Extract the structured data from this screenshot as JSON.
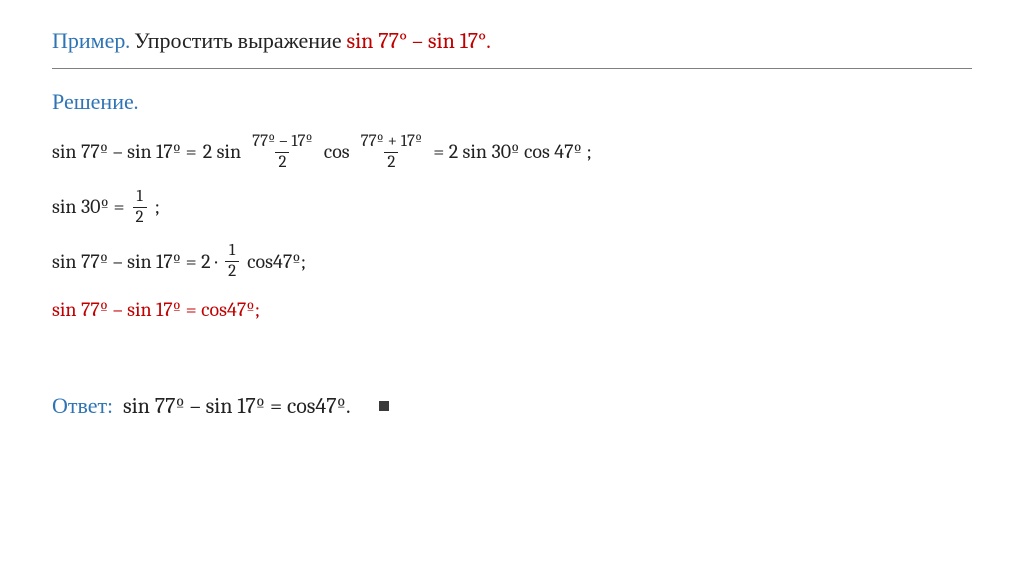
{
  "colors": {
    "blue": "#2e74b5",
    "red": "#c00000",
    "text": "#222222",
    "rule": "#808080",
    "square": "#3a3a3a"
  },
  "fontsizes": {
    "title": 22,
    "body": 20,
    "frac": 17,
    "answer": 22
  },
  "title": {
    "label": "Пример.",
    "prompt": "Упростить выражение ",
    "expr": "sin 77° – sin 17°."
  },
  "solution_label": "Решение.",
  "lines": {
    "l1_lhs": "sin 77º – sin 17º  =  ",
    "l1_two_sin": "2 sin",
    "l1_frac1_num": "77º – 17º",
    "l1_frac1_den": "2",
    "l1_cos": "cos",
    "l1_frac2_num": "77º + 17º",
    "l1_frac2_den": "2",
    "l1_eq2": " =   2 sin 30º cos 47º ;",
    "l2_lhs": "sin 30º  = ",
    "l2_frac_num": "1",
    "l2_frac_den": "2",
    "l2_tail": ";",
    "l3_lhs": "sin 77º – sin 17º  =  2 · ",
    "l3_frac_num": "1",
    "l3_frac_den": "2",
    "l3_tail": " cos47º;",
    "l4": "sin 77º – sin 17º  =  cos47º;"
  },
  "answer": {
    "label": "Ответ:",
    "expr": "sin 77º – sin 17º  =  cos47º."
  }
}
